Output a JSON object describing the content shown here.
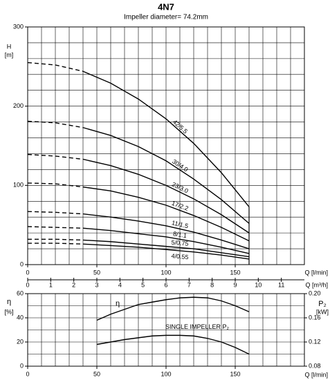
{
  "chart_data": [
    {
      "type": "line",
      "title": "4N7",
      "subtitle": "Impeller diameter= 74.2mm",
      "y_label": "H",
      "y_unit": "[m]",
      "x_label": "Q [l/min]",
      "x2_label": "Q [m³/h]",
      "xlim": [
        0,
        200
      ],
      "xticks": [
        0,
        50,
        100,
        150
      ],
      "x2lim": [
        0,
        12
      ],
      "x2ticks": [
        0,
        1,
        2,
        3,
        4,
        5,
        6,
        7,
        8,
        9,
        10,
        11
      ],
      "ylim": [
        0,
        300
      ],
      "yticks": [
        0,
        100,
        200,
        300
      ],
      "xgrid": [
        0,
        10,
        20,
        30,
        40,
        50,
        60,
        70,
        80,
        90,
        100,
        110,
        120,
        130,
        140,
        150,
        160,
        170,
        180,
        190,
        200
      ],
      "ygrid": [
        0,
        20,
        40,
        60,
        80,
        100,
        120,
        140,
        160,
        180,
        200,
        220,
        240,
        260,
        280,
        300
      ],
      "dashed_x_max": 40,
      "x": [
        0,
        20,
        40,
        60,
        80,
        100,
        120,
        140,
        160
      ],
      "series": [
        {
          "name": "42/5.5",
          "color": "#000000",
          "values": [
            255,
            252,
            244,
            229,
            209,
            184,
            153,
            116,
            73
          ]
        },
        {
          "name": "30/4.0",
          "color": "#000000",
          "values": [
            181,
            179,
            173,
            163,
            149,
            131,
            108,
            82,
            52
          ]
        },
        {
          "name": "23/3.0",
          "color": "#000000",
          "values": [
            139,
            137,
            133,
            125,
            114,
            100,
            83,
            63,
            40
          ]
        },
        {
          "name": "17/2.2",
          "color": "#000000",
          "values": [
            103,
            102,
            98,
            93,
            85,
            75,
            62,
            47,
            30
          ]
        },
        {
          "name": "11/1.5",
          "color": "#000000",
          "values": [
            67,
            66,
            64,
            60,
            55,
            49,
            41,
            31,
            20
          ]
        },
        {
          "name": "8/1.1",
          "color": "#000000",
          "values": [
            48,
            47,
            46,
            43,
            39,
            35,
            29,
            22,
            14
          ]
        },
        {
          "name": "5/0.75",
          "color": "#000000",
          "values": [
            32,
            32,
            31,
            29,
            26,
            23,
            20,
            15,
            10
          ]
        },
        {
          "name": "4/0.55",
          "color": "#000000",
          "values": [
            27,
            27,
            26,
            24,
            22,
            19,
            16,
            12,
            7
          ]
        }
      ]
    },
    {
      "type": "line",
      "y_label": "η",
      "y_unit": "[%]",
      "y2_label": "P₂",
      "y2_unit": "[kW]",
      "x_label": "Q [l/min]",
      "xlim": [
        0,
        200
      ],
      "xticks": [
        0,
        50,
        100,
        150
      ],
      "ylim": [
        0,
        60
      ],
      "yticks": [
        0,
        20,
        40,
        60
      ],
      "y2lim": [
        0.08,
        0.2
      ],
      "y2ticks": [
        0.08,
        0.12,
        0.16,
        {
          "value": 0.2,
          "label": "0.20"
        }
      ],
      "xgrid": [
        0,
        10,
        20,
        30,
        40,
        50,
        60,
        70,
        80,
        90,
        100,
        110,
        120,
        130,
        140,
        150,
        160,
        170,
        180,
        190,
        200
      ],
      "ygrid": [
        0,
        10,
        20,
        30,
        40,
        50,
        60
      ],
      "x": [
        50,
        60,
        70,
        80,
        90,
        100,
        110,
        120,
        130,
        140,
        150,
        160
      ],
      "series": [
        {
          "name": "η",
          "color": "#000000",
          "values": [
            38,
            43,
            47,
            51,
            53,
            55,
            56.5,
            57,
            56.5,
            54,
            50,
            45
          ]
        },
        {
          "name": "SINGLE IMPELLER P₂",
          "color": "#000000",
          "axis": "y2",
          "values": [
            0.116,
            0.12,
            0.124,
            0.127,
            0.13,
            0.131,
            0.131,
            0.13,
            0.126,
            0.12,
            0.111,
            0.1
          ]
        }
      ]
    }
  ]
}
